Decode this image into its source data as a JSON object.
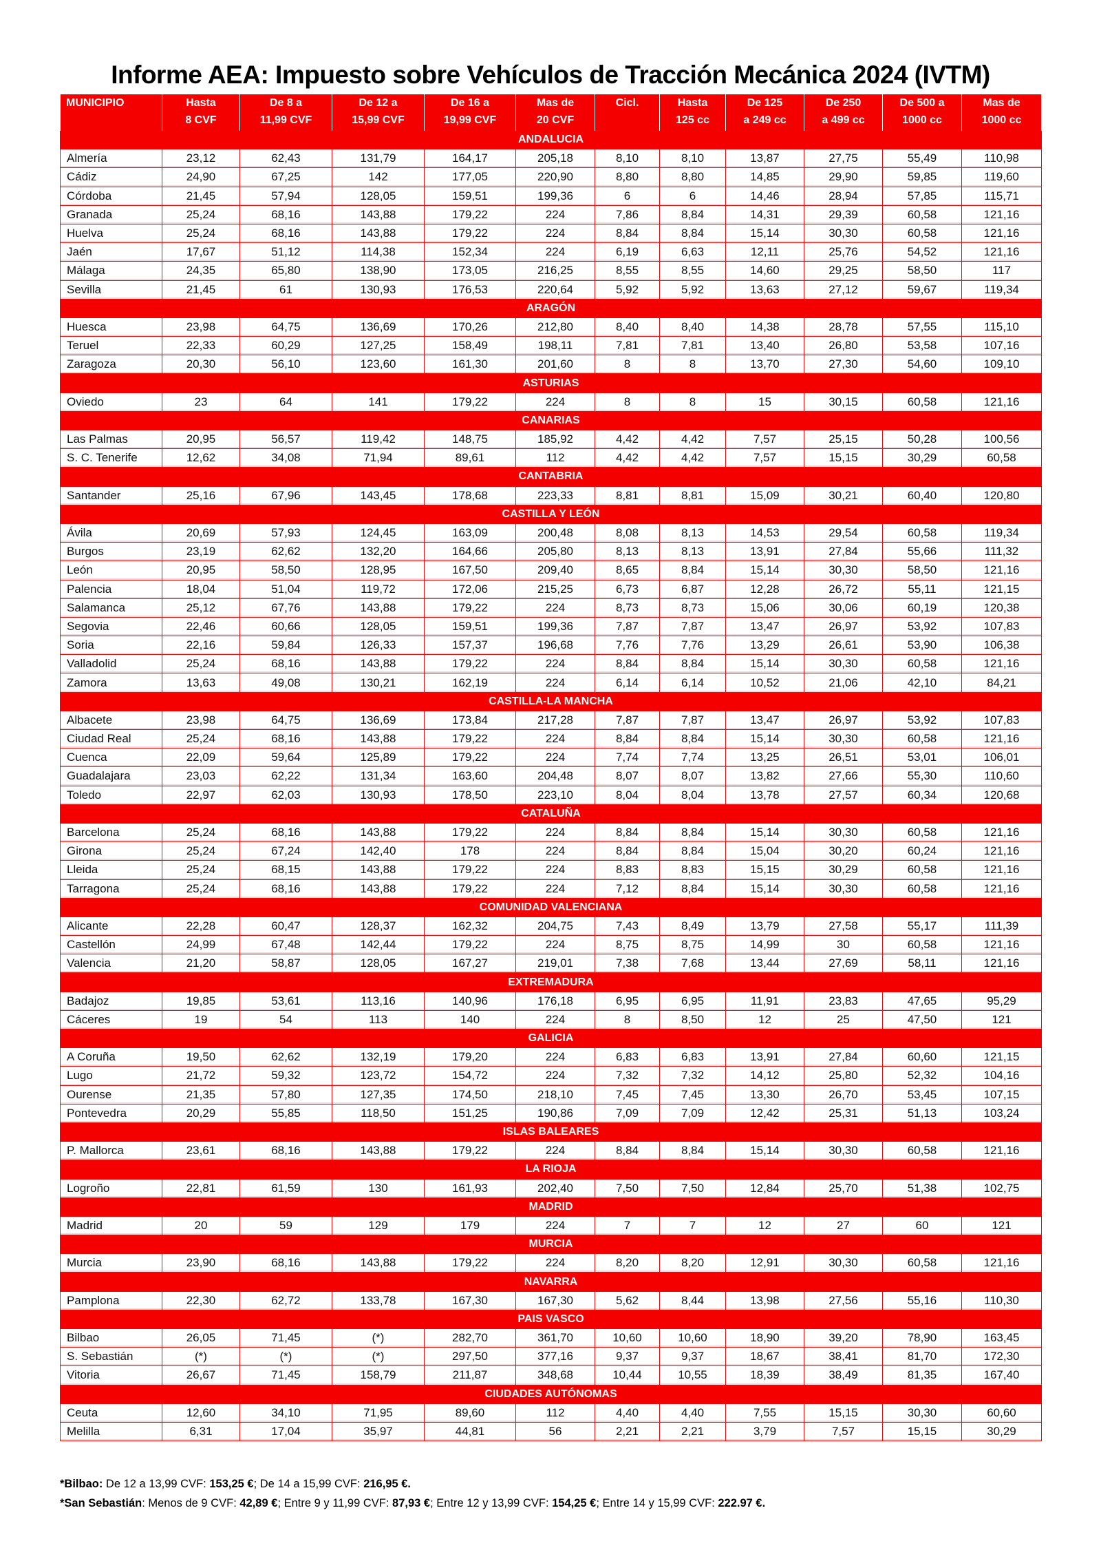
{
  "title": "Informe AEA:  Impuesto sobre Vehículos de Tracción Mecánica 2024 (IVTM)",
  "colors": {
    "accent": "#f40000",
    "header_text": "#ffffff"
  },
  "columns": [
    [
      "MUNICIPIO",
      ""
    ],
    [
      "Hasta",
      "8 CVF"
    ],
    [
      "De 8 a",
      "11,99 CVF"
    ],
    [
      "De 12 a",
      "15,99 CVF"
    ],
    [
      "De 16 a",
      "19,99 CVF"
    ],
    [
      "Mas de",
      "20 CVF"
    ],
    [
      "Cicl.",
      ""
    ],
    [
      "Hasta",
      "125 cc"
    ],
    [
      "De 125",
      "a 249 cc"
    ],
    [
      "De 250",
      "a 499 cc"
    ],
    [
      "De 500 a",
      "1000 cc"
    ],
    [
      "Mas de",
      "1000 cc"
    ]
  ],
  "sections": [
    {
      "name": "ANDALUCIA",
      "rows": [
        [
          "Almería",
          "23,12",
          "62,43",
          "131,79",
          "164,17",
          "205,18",
          "8,10",
          "8,10",
          "13,87",
          "27,75",
          "55,49",
          "110,98"
        ],
        [
          "Cádiz",
          "24,90",
          "67,25",
          "142",
          "177,05",
          "220,90",
          "8,80",
          "8,80",
          "14,85",
          "29,90",
          "59,85",
          "119,60"
        ],
        [
          "Córdoba",
          "21,45",
          "57,94",
          "128,05",
          "159,51",
          "199,36",
          "6",
          "6",
          "14,46",
          "28,94",
          "57,85",
          "115,71"
        ],
        [
          "Granada",
          "25,24",
          "68,16",
          "143,88",
          "179,22",
          "224",
          "7,86",
          "8,84",
          "14,31",
          "29,39",
          "60,58",
          "121,16"
        ],
        [
          "Huelva",
          "25,24",
          "68,16",
          "143,88",
          "179,22",
          "224",
          "8,84",
          "8,84",
          "15,14",
          "30,30",
          "60,58",
          "121,16"
        ],
        [
          "Jaén",
          "17,67",
          "51,12",
          "114,38",
          "152,34",
          "224",
          "6,19",
          "6,63",
          "12,11",
          "25,76",
          "54,52",
          "121,16"
        ],
        [
          "Málaga",
          "24,35",
          "65,80",
          "138,90",
          "173,05",
          "216,25",
          "8,55",
          "8,55",
          "14,60",
          "29,25",
          "58,50",
          "117"
        ],
        [
          "Sevilla",
          "21,45",
          "61",
          "130,93",
          "176,53",
          "220,64",
          "5,92",
          "5,92",
          "13,63",
          "27,12",
          "59,67",
          "119,34"
        ]
      ]
    },
    {
      "name": "ARAGÓN",
      "rows": [
        [
          "Huesca",
          "23,98",
          "64,75",
          "136,69",
          "170,26",
          "212,80",
          "8,40",
          "8,40",
          "14,38",
          "28,78",
          "57,55",
          "115,10"
        ],
        [
          "Teruel",
          "22,33",
          "60,29",
          "127,25",
          "158,49",
          "198,11",
          "7,81",
          "7,81",
          "13,40",
          "26,80",
          "53,58",
          "107,16"
        ],
        [
          "Zaragoza",
          "20,30",
          "56,10",
          "123,60",
          "161,30",
          "201,60",
          "8",
          "8",
          "13,70",
          "27,30",
          "54,60",
          "109,10"
        ]
      ]
    },
    {
      "name": "ASTURIAS",
      "rows": [
        [
          "Oviedo",
          "23",
          "64",
          "141",
          "179,22",
          "224",
          "8",
          "8",
          "15",
          "30,15",
          "60,58",
          "121,16"
        ]
      ]
    },
    {
      "name": "CANARIAS",
      "rows": [
        [
          "Las Palmas",
          "20,95",
          "56,57",
          "119,42",
          "148,75",
          "185,92",
          "4,42",
          "4,42",
          "7,57",
          "25,15",
          "50,28",
          "100,56"
        ],
        [
          "S. C. Tenerife",
          "12,62",
          "34,08",
          "71,94",
          "89,61",
          "112",
          "4,42",
          "4,42",
          "7,57",
          "15,15",
          "30,29",
          "60,58"
        ]
      ]
    },
    {
      "name": "CANTABRIA",
      "rows": [
        [
          "Santander",
          "25,16",
          "67,96",
          "143,45",
          "178,68",
          "223,33",
          "8,81",
          "8,81",
          "15,09",
          "30,21",
          "60,40",
          "120,80"
        ]
      ]
    },
    {
      "name": "CASTILLA Y LEÓN",
      "rows": [
        [
          "Ávila",
          "20,69",
          "57,93",
          "124,45",
          "163,09",
          "200,48",
          "8,08",
          "8,13",
          "14,53",
          "29,54",
          "60,58",
          "119,34"
        ],
        [
          "Burgos",
          "23,19",
          "62,62",
          "132,20",
          "164,66",
          "205,80",
          "8,13",
          "8,13",
          "13,91",
          "27,84",
          "55,66",
          "111,32"
        ],
        [
          "León",
          "20,95",
          "58,50",
          "128,95",
          "167,50",
          "209,40",
          "8,65",
          "8,84",
          "15,14",
          "30,30",
          "58,50",
          "121,16"
        ],
        [
          "Palencia",
          "18,04",
          "51,04",
          "119,72",
          "172,06",
          "215,25",
          "6,73",
          "6,87",
          "12,28",
          "26,72",
          "55,11",
          "121,15"
        ],
        [
          "Salamanca",
          "25,12",
          "67,76",
          "143,88",
          "179,22",
          "224",
          "8,73",
          "8,73",
          "15,06",
          "30,06",
          "60,19",
          "120,38"
        ],
        [
          "Segovia",
          "22,46",
          "60,66",
          "128,05",
          "159,51",
          "199,36",
          "7,87",
          "7,87",
          "13,47",
          "26,97",
          "53,92",
          "107,83"
        ],
        [
          "Soria",
          "22,16",
          "59,84",
          "126,33",
          "157,37",
          "196,68",
          "7,76",
          "7,76",
          "13,29",
          "26,61",
          "53,90",
          "106,38"
        ],
        [
          "Valladolid",
          "25,24",
          "68,16",
          "143,88",
          "179,22",
          "224",
          "8,84",
          "8,84",
          "15,14",
          "30,30",
          "60,58",
          "121,16"
        ],
        [
          "Zamora",
          "13,63",
          "49,08",
          "130,21",
          "162,19",
          "224",
          "6,14",
          "6,14",
          "10,52",
          "21,06",
          "42,10",
          "84,21"
        ]
      ]
    },
    {
      "name": "CASTILLA-LA MANCHA",
      "rows": [
        [
          "Albacete",
          "23,98",
          "64,75",
          "136,69",
          "173,84",
          "217,28",
          "7,87",
          "7,87",
          "13,47",
          "26,97",
          "53,92",
          "107,83"
        ],
        [
          "Ciudad Real",
          "25,24",
          "68,16",
          "143,88",
          "179,22",
          "224",
          "8,84",
          "8,84",
          "15,14",
          "30,30",
          "60,58",
          "121,16"
        ],
        [
          "Cuenca",
          "22,09",
          "59,64",
          "125,89",
          "179,22",
          "224",
          "7,74",
          "7,74",
          "13,25",
          "26,51",
          "53,01",
          "106,01"
        ],
        [
          "Guadalajara",
          "23,03",
          "62,22",
          "131,34",
          "163,60",
          "204,48",
          "8,07",
          "8,07",
          "13,82",
          "27,66",
          "55,30",
          "110,60"
        ],
        [
          "Toledo",
          "22,97",
          "62,03",
          "130,93",
          "178,50",
          "223,10",
          "8,04",
          "8,04",
          "13,78",
          "27,57",
          "60,34",
          "120,68"
        ]
      ]
    },
    {
      "name": "CATALUÑA",
      "rows": [
        [
          "Barcelona",
          "25,24",
          "68,16",
          "143,88",
          "179,22",
          "224",
          "8,84",
          "8,84",
          "15,14",
          "30,30",
          "60,58",
          "121,16"
        ],
        [
          "Girona",
          "25,24",
          "67,24",
          "142,40",
          "178",
          "224",
          "8,84",
          "8,84",
          "15,04",
          "30,20",
          "60,24",
          "121,16"
        ],
        [
          "Lleida",
          "25,24",
          "68,15",
          "143,88",
          "179,22",
          "224",
          "8,83",
          "8,83",
          "15,15",
          "30,29",
          "60,58",
          "121,16"
        ],
        [
          "Tarragona",
          "25,24",
          "68,16",
          "143,88",
          "179,22",
          "224",
          "7,12",
          "8,84",
          "15,14",
          "30,30",
          "60,58",
          "121,16"
        ]
      ]
    },
    {
      "name": "COMUNIDAD VALENCIANA",
      "rows": [
        [
          "Alicante",
          "22,28",
          "60,47",
          "128,37",
          "162,32",
          "204,75",
          "7,43",
          "8,49",
          "13,79",
          "27,58",
          "55,17",
          "111,39"
        ],
        [
          "Castellón",
          "24,99",
          "67,48",
          "142,44",
          "179,22",
          "224",
          "8,75",
          "8,75",
          "14,99",
          "30",
          "60,58",
          "121,16"
        ],
        [
          "Valencia",
          "21,20",
          "58,87",
          "128,05",
          "167,27",
          "219,01",
          "7,38",
          "7,68",
          "13,44",
          "27,69",
          "58,11",
          "121,16"
        ]
      ]
    },
    {
      "name": "EXTREMADURA",
      "rows": [
        [
          "Badajoz",
          "19,85",
          "53,61",
          "113,16",
          "140,96",
          "176,18",
          "6,95",
          "6,95",
          "11,91",
          "23,83",
          "47,65",
          "95,29"
        ],
        [
          "Cáceres",
          "19",
          "54",
          "113",
          "140",
          "224",
          "8",
          "8,50",
          "12",
          "25",
          "47,50",
          "121"
        ]
      ]
    },
    {
      "name": "GALICIA",
      "rows": [
        [
          "A Coruña",
          "19,50",
          "62,62",
          "132,19",
          "179,20",
          "224",
          "6,83",
          "6,83",
          "13,91",
          "27,84",
          "60,60",
          "121,15"
        ],
        [
          "Lugo",
          "21,72",
          "59,32",
          "123,72",
          "154,72",
          "224",
          "7,32",
          "7,32",
          "14,12",
          "25,80",
          "52,32",
          "104,16"
        ],
        [
          "Ourense",
          "21,35",
          "57,80",
          "127,35",
          "174,50",
          "218,10",
          "7,45",
          "7,45",
          "13,30",
          "26,70",
          "53,45",
          "107,15"
        ],
        [
          "Pontevedra",
          "20,29",
          "55,85",
          "118,50",
          "151,25",
          "190,86",
          "7,09",
          "7,09",
          "12,42",
          "25,31",
          "51,13",
          "103,24"
        ]
      ]
    },
    {
      "name": "ISLAS BALEARES",
      "rows": [
        [
          "P. Mallorca",
          "23,61",
          "68,16",
          "143,88",
          "179,22",
          "224",
          "8,84",
          "8,84",
          "15,14",
          "30,30",
          "60,58",
          "121,16"
        ]
      ]
    },
    {
      "name": "LA RIOJA",
      "rows": [
        [
          "Logroño",
          "22,81",
          "61,59",
          "130",
          "161,93",
          "202,40",
          "7,50",
          "7,50",
          "12,84",
          "25,70",
          "51,38",
          "102,75"
        ]
      ]
    },
    {
      "name": "MADRID",
      "rows": [
        [
          "Madrid",
          "20",
          "59",
          "129",
          "179",
          "224",
          "7",
          "7",
          "12",
          "27",
          "60",
          "121"
        ]
      ]
    },
    {
      "name": "MURCIA",
      "rows": [
        [
          "Murcia",
          "23,90",
          "68,16",
          "143,88",
          "179,22",
          "224",
          "8,20",
          "8,20",
          "12,91",
          "30,30",
          "60,58",
          "121,16"
        ]
      ]
    },
    {
      "name": "NAVARRA",
      "rows": [
        [
          "Pamplona",
          "22,30",
          "62,72",
          "133,78",
          "167,30",
          "167,30",
          "5,62",
          "8,44",
          "13,98",
          "27,56",
          "55,16",
          "110,30"
        ]
      ]
    },
    {
      "name": "PAIS VASCO",
      "rows": [
        [
          "Bilbao",
          "26,05",
          "71,45",
          "(*)",
          "282,70",
          "361,70",
          "10,60",
          "10,60",
          "18,90",
          "39,20",
          "78,90",
          "163,45"
        ],
        [
          "S. Sebastián",
          "(*)",
          "(*)",
          "(*)",
          "297,50",
          "377,16",
          "9,37",
          "9,37",
          "18,67",
          "38,41",
          "81,70",
          "172,30"
        ],
        [
          "Vitoria",
          "26,67",
          "71,45",
          "158,79",
          "211,87",
          "348,68",
          "10,44",
          "10,55",
          "18,39",
          "38,49",
          "81,35",
          "167,40"
        ]
      ]
    },
    {
      "name": "CIUDADES AUTÓNOMAS",
      "rows": [
        [
          "Ceuta",
          "12,60",
          "34,10",
          "71,95",
          "89,60",
          "112",
          "4,40",
          "4,40",
          "7,55",
          "15,15",
          "30,30",
          "60,60"
        ],
        [
          "Melilla",
          "6,31",
          "17,04",
          "35,97",
          "44,81",
          "56",
          "2,21",
          "2,21",
          "3,79",
          "7,57",
          "15,15",
          "30,29"
        ]
      ]
    }
  ],
  "footnotes": {
    "bilbao": [
      {
        "t": "*Bilbao:",
        "b": true
      },
      {
        "t": " De 12 a 13,99 CVF: ",
        "b": false
      },
      {
        "t": "153,25 €",
        "b": true
      },
      {
        "t": "; De 14 a 15,99 CVF: ",
        "b": false
      },
      {
        "t": "216,95 €.",
        "b": true
      }
    ],
    "san_sebastian": [
      {
        "t": "*San Sebastián",
        "b": true
      },
      {
        "t": ": Menos de 9 CVF: ",
        "b": false
      },
      {
        "t": "42,89 €",
        "b": true
      },
      {
        "t": "; Entre 9 y 11,99 CVF: ",
        "b": false
      },
      {
        "t": "87,93 €",
        "b": true
      },
      {
        "t": "; Entre 12 y 13,99 CVF: ",
        "b": false
      },
      {
        "t": "154,25 €",
        "b": true
      },
      {
        "t": "; Entre 14 y 15,99 CVF: ",
        "b": false
      },
      {
        "t": "222.97 €.",
        "b": true
      }
    ]
  }
}
